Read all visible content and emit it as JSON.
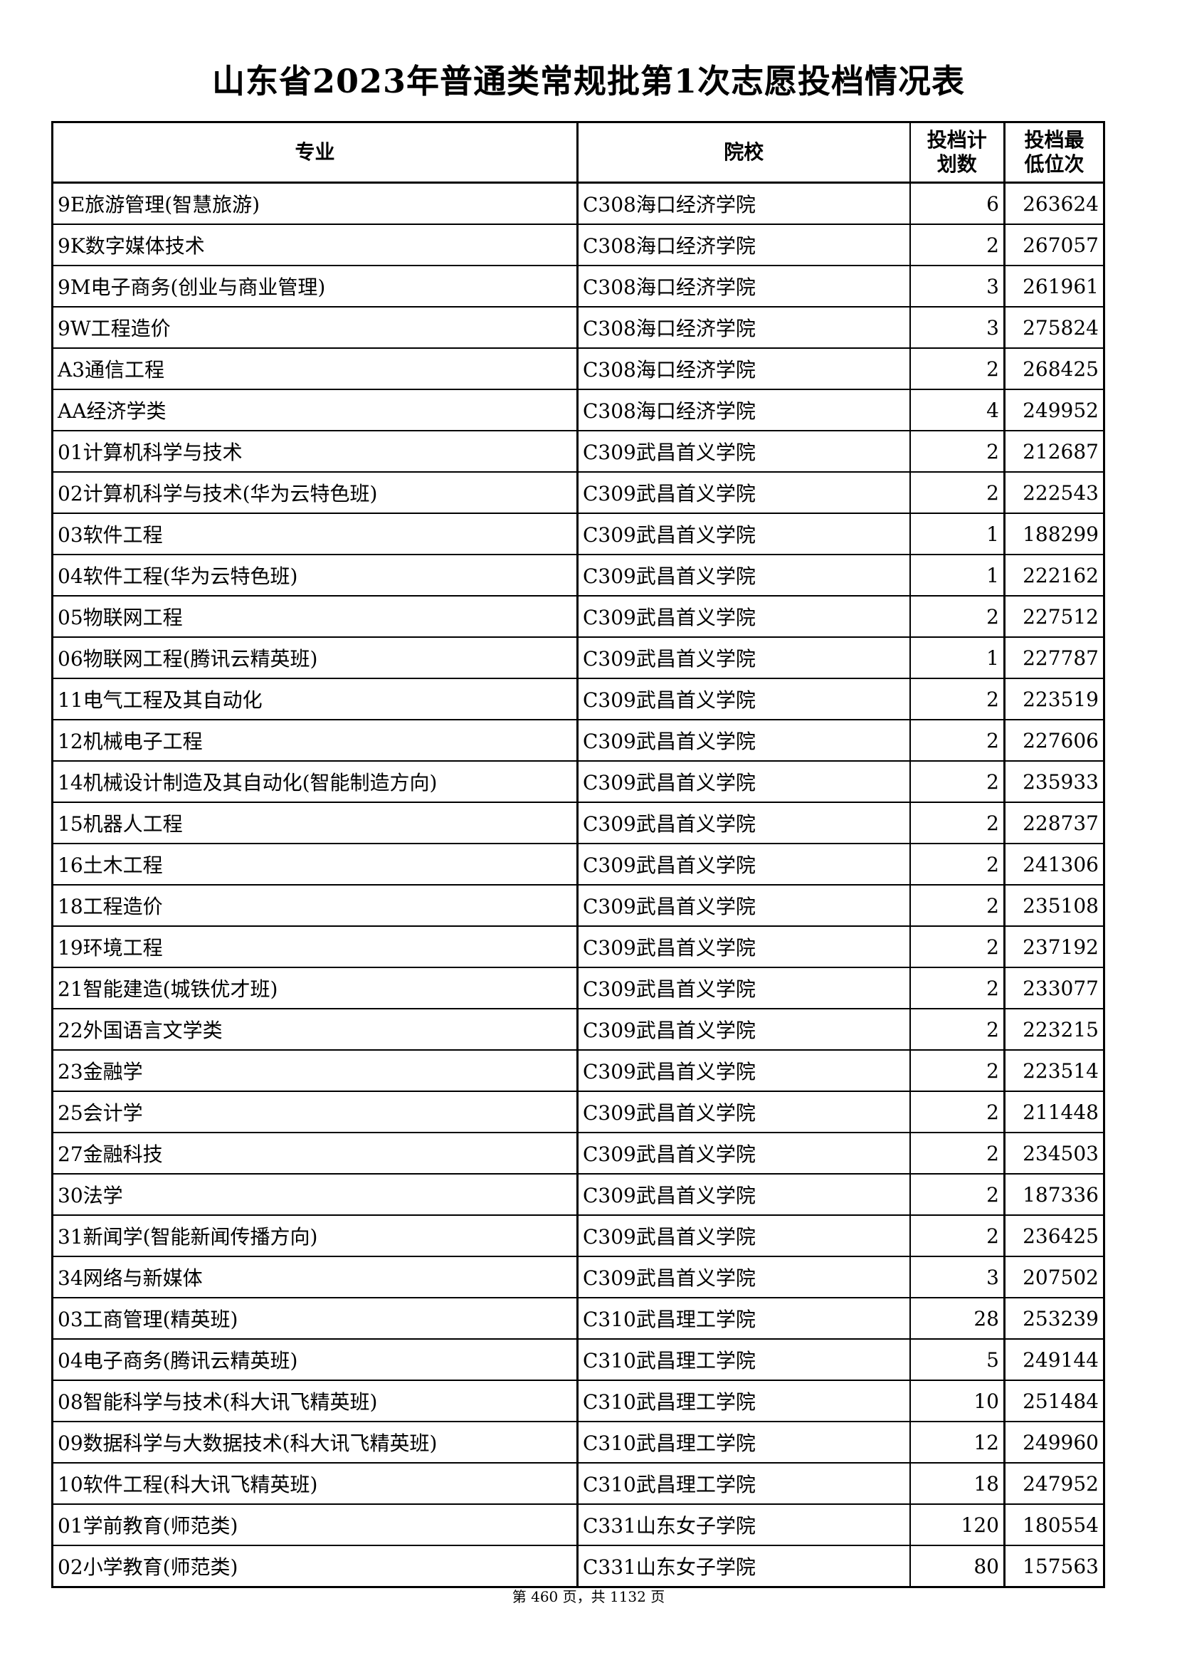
{
  "title": "山东省2023年普通类常规批第1次志愿投档情况表",
  "columns": [
    "专业",
    "院校",
    "投档计划数",
    "投档最低位次"
  ],
  "column_header_lines": {
    "plan": [
      "投档计",
      "划数"
    ],
    "rank": [
      "投档最",
      "低位次"
    ]
  },
  "rows": [
    {
      "major": "9E旅游管理(智慧旅游)",
      "school": "C308海口经济学院",
      "plan": "6",
      "rank": "263624"
    },
    {
      "major": "9K数字媒体技术",
      "school": "C308海口经济学院",
      "plan": "2",
      "rank": "267057"
    },
    {
      "major": "9M电子商务(创业与商业管理)",
      "school": "C308海口经济学院",
      "plan": "3",
      "rank": "261961"
    },
    {
      "major": "9W工程造价",
      "school": "C308海口经济学院",
      "plan": "3",
      "rank": "275824"
    },
    {
      "major": "A3通信工程",
      "school": "C308海口经济学院",
      "plan": "2",
      "rank": "268425"
    },
    {
      "major": "AA经济学类",
      "school": "C308海口经济学院",
      "plan": "4",
      "rank": "249952"
    },
    {
      "major": "01计算机科学与技术",
      "school": "C309武昌首义学院",
      "plan": "2",
      "rank": "212687"
    },
    {
      "major": "02计算机科学与技术(华为云特色班)",
      "school": "C309武昌首义学院",
      "plan": "2",
      "rank": "222543"
    },
    {
      "major": "03软件工程",
      "school": "C309武昌首义学院",
      "plan": "1",
      "rank": "188299"
    },
    {
      "major": "04软件工程(华为云特色班)",
      "school": "C309武昌首义学院",
      "plan": "1",
      "rank": "222162"
    },
    {
      "major": "05物联网工程",
      "school": "C309武昌首义学院",
      "plan": "2",
      "rank": "227512"
    },
    {
      "major": "06物联网工程(腾讯云精英班)",
      "school": "C309武昌首义学院",
      "plan": "1",
      "rank": "227787"
    },
    {
      "major": "11电气工程及其自动化",
      "school": "C309武昌首义学院",
      "plan": "2",
      "rank": "223519"
    },
    {
      "major": "12机械电子工程",
      "school": "C309武昌首义学院",
      "plan": "2",
      "rank": "227606"
    },
    {
      "major": "14机械设计制造及其自动化(智能制造方向)",
      "school": "C309武昌首义学院",
      "plan": "2",
      "rank": "235933"
    },
    {
      "major": "15机器人工程",
      "school": "C309武昌首义学院",
      "plan": "2",
      "rank": "228737"
    },
    {
      "major": "16土木工程",
      "school": "C309武昌首义学院",
      "plan": "2",
      "rank": "241306"
    },
    {
      "major": "18工程造价",
      "school": "C309武昌首义学院",
      "plan": "2",
      "rank": "235108"
    },
    {
      "major": "19环境工程",
      "school": "C309武昌首义学院",
      "plan": "2",
      "rank": "237192"
    },
    {
      "major": "21智能建造(城铁优才班)",
      "school": "C309武昌首义学院",
      "plan": "2",
      "rank": "233077"
    },
    {
      "major": "22外国语言文学类",
      "school": "C309武昌首义学院",
      "plan": "2",
      "rank": "223215"
    },
    {
      "major": "23金融学",
      "school": "C309武昌首义学院",
      "plan": "2",
      "rank": "223514"
    },
    {
      "major": "25会计学",
      "school": "C309武昌首义学院",
      "plan": "2",
      "rank": "211448"
    },
    {
      "major": "27金融科技",
      "school": "C309武昌首义学院",
      "plan": "2",
      "rank": "234503"
    },
    {
      "major": "30法学",
      "school": "C309武昌首义学院",
      "plan": "2",
      "rank": "187336"
    },
    {
      "major": "31新闻学(智能新闻传播方向)",
      "school": "C309武昌首义学院",
      "plan": "2",
      "rank": "236425"
    },
    {
      "major": "34网络与新媒体",
      "school": "C309武昌首义学院",
      "plan": "3",
      "rank": "207502"
    },
    {
      "major": "03工商管理(精英班)",
      "school": "C310武昌理工学院",
      "plan": "28",
      "rank": "253239"
    },
    {
      "major": "04电子商务(腾讯云精英班)",
      "school": "C310武昌理工学院",
      "plan": "5",
      "rank": "249144"
    },
    {
      "major": "08智能科学与技术(科大讯飞精英班)",
      "school": "C310武昌理工学院",
      "plan": "10",
      "rank": "251484"
    },
    {
      "major": "09数据科学与大数据技术(科大讯飞精英班)",
      "school": "C310武昌理工学院",
      "plan": "12",
      "rank": "249960"
    },
    {
      "major": "10软件工程(科大讯飞精英班)",
      "school": "C310武昌理工学院",
      "plan": "18",
      "rank": "247952"
    },
    {
      "major": "01学前教育(师范类)",
      "school": "C331山东女子学院",
      "plan": "120",
      "rank": "180554"
    },
    {
      "major": "02小学教育(师范类)",
      "school": "C331山东女子学院",
      "plan": "80",
      "rank": "157563"
    }
  ],
  "footer": "第 460 页，共 1132 页"
}
